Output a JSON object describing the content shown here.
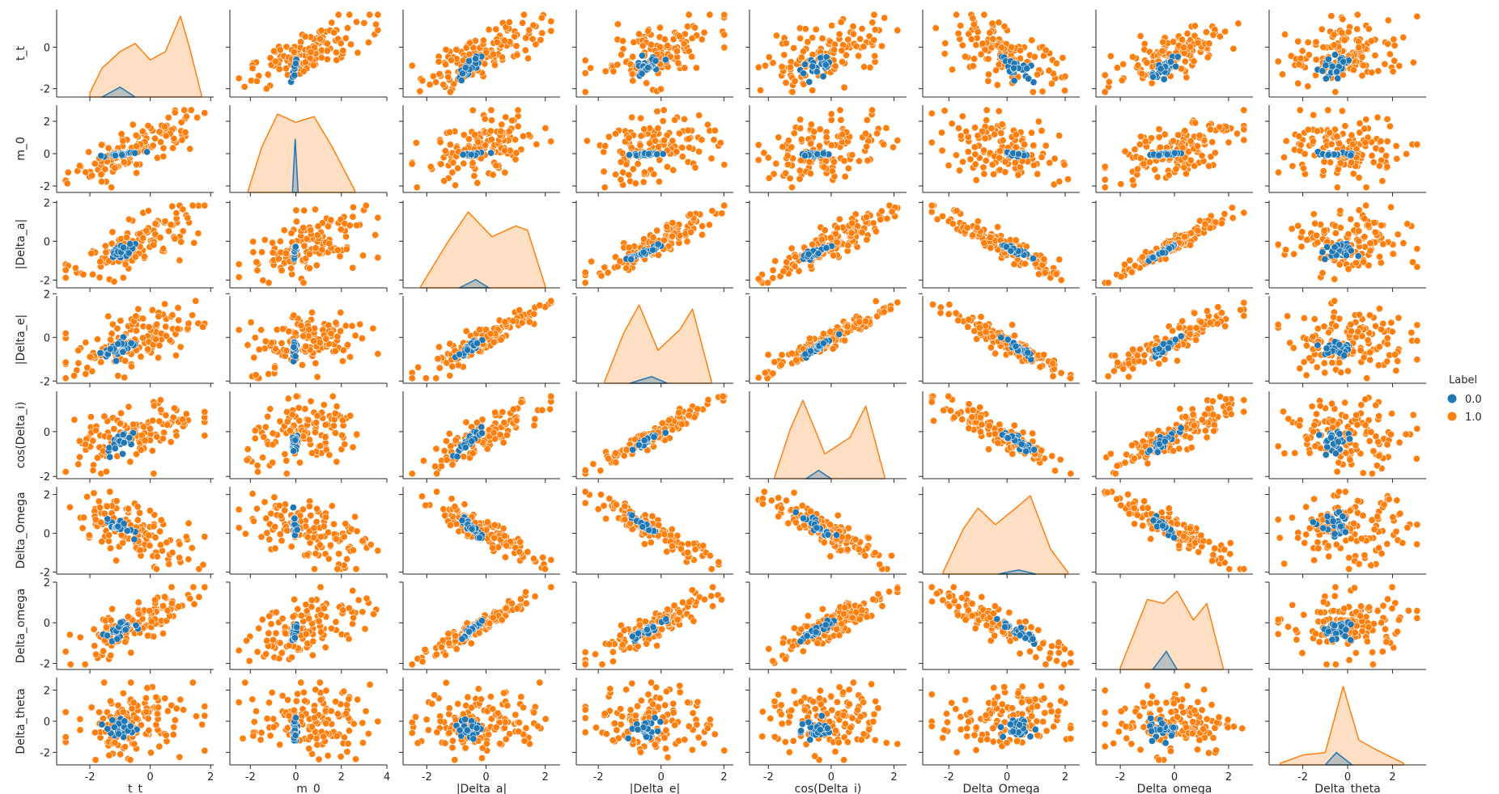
{
  "chart_data": {
    "type": "scatter",
    "kind": "pairplot",
    "variables": [
      "t_t",
      "m_0",
      "|Delta_a|",
      "|Delta_e|",
      "cos(Delta_i)",
      "Delta_Omega",
      "Delta_omega",
      "Delta_theta"
    ],
    "legend": {
      "title": "Label",
      "position": "right",
      "entries": [
        {
          "label": "0.0",
          "color": "#1f77b4"
        },
        {
          "label": "1.0",
          "color": "#ff7f0e"
        }
      ]
    },
    "diagonal": "kde",
    "off_diagonal": "scatter",
    "grid": false,
    "axes": [
      {
        "name": "t_t",
        "range": [
          -3.1,
          2.1
        ],
        "ticks": [
          "-2",
          "0",
          "2"
        ],
        "y_range": [
          -2.4,
          1.8
        ],
        "y_ticks": [
          "-2",
          "0"
        ],
        "cluster_center": -1.0,
        "cluster_spread": 0.25,
        "kde": [
          [
            -2.0,
            0.05
          ],
          [
            -1.6,
            0.35
          ],
          [
            -1.0,
            0.55
          ],
          [
            -0.5,
            0.65
          ],
          [
            0.0,
            0.45
          ],
          [
            0.5,
            0.55
          ],
          [
            1.0,
            0.98
          ],
          [
            1.3,
            0.6
          ],
          [
            1.7,
            0.02
          ]
        ],
        "kde_label0": [
          [
            -1.6,
            0.0
          ],
          [
            -1.0,
            0.12
          ],
          [
            -0.5,
            0.0
          ]
        ]
      },
      {
        "name": "m_0",
        "range": [
          -2.9,
          4.0
        ],
        "ticks": [
          "-2",
          "0",
          "2",
          "4"
        ],
        "y_range": [
          -2.4,
          3.0
        ],
        "y_ticks": [
          "-2",
          "0",
          "2"
        ],
        "cluster_center": -0.05,
        "cluster_spread": 0.05,
        "kde": [
          [
            -2.1,
            0.02
          ],
          [
            -1.5,
            0.55
          ],
          [
            -0.8,
            0.95
          ],
          [
            0.0,
            0.85
          ],
          [
            0.8,
            0.92
          ],
          [
            1.6,
            0.55
          ],
          [
            2.6,
            0.02
          ]
        ],
        "kde_label0": [
          [
            -0.15,
            0.0
          ],
          [
            -0.03,
            0.65
          ],
          [
            0.1,
            0.0
          ]
        ]
      },
      {
        "name": "|Delta_a|",
        "range": [
          -2.8,
          2.5
        ],
        "ticks": [
          "-2",
          "0",
          "2"
        ],
        "y_range": [
          -2.4,
          2.1
        ],
        "y_ticks": [
          "-2",
          "0",
          "2"
        ],
        "cluster_center": -0.55,
        "cluster_spread": 0.2,
        "kde": [
          [
            -2.2,
            0.02
          ],
          [
            -1.3,
            0.55
          ],
          [
            -0.6,
            0.92
          ],
          [
            0.2,
            0.62
          ],
          [
            1.0,
            0.75
          ],
          [
            1.4,
            0.7
          ],
          [
            2.0,
            0.02
          ]
        ],
        "kde_label0": [
          [
            -0.9,
            0.0
          ],
          [
            -0.35,
            0.1
          ],
          [
            0.1,
            0.0
          ]
        ]
      },
      {
        "name": "|Delta_e|",
        "range": [
          -2.7,
          2.3
        ],
        "ticks": [
          "-2",
          "0",
          "2"
        ],
        "y_range": [
          -2.1,
          1.9
        ],
        "y_ticks": [
          "-2",
          "0",
          "2"
        ],
        "cluster_center": -0.5,
        "cluster_spread": 0.25,
        "kde": [
          [
            -1.8,
            0.02
          ],
          [
            -1.2,
            0.6
          ],
          [
            -0.7,
            0.95
          ],
          [
            -0.1,
            0.4
          ],
          [
            0.6,
            0.65
          ],
          [
            1.0,
            0.9
          ],
          [
            1.6,
            0.03
          ]
        ],
        "kde_label0": [
          [
            -1.0,
            0.0
          ],
          [
            -0.3,
            0.08
          ],
          [
            0.2,
            0.0
          ]
        ]
      },
      {
        "name": "cos(Delta_i)",
        "range": [
          -2.6,
          2.4
        ],
        "ticks": [
          "-2",
          "0",
          "2"
        ],
        "y_range": [
          -2.1,
          1.8
        ],
        "y_ticks": [
          "-2",
          "0"
        ],
        "cluster_center": -0.45,
        "cluster_spread": 0.25,
        "kde": [
          [
            -1.8,
            0.02
          ],
          [
            -1.3,
            0.6
          ],
          [
            -0.9,
            0.95
          ],
          [
            -0.2,
            0.3
          ],
          [
            0.6,
            0.5
          ],
          [
            1.1,
            0.88
          ],
          [
            1.7,
            0.03
          ]
        ],
        "kde_label0": [
          [
            -0.8,
            0.0
          ],
          [
            -0.4,
            0.1
          ],
          [
            0.0,
            0.0
          ]
        ]
      },
      {
        "name": "Delta_Omega",
        "range": [
          -2.9,
          2.5
        ],
        "ticks": [
          "-2",
          "0",
          "2"
        ],
        "y_range": [
          -2.1,
          2.4
        ],
        "y_ticks": [
          "-2",
          "0",
          "2"
        ],
        "cluster_center": 0.35,
        "cluster_spread": 0.3,
        "kde": [
          [
            -2.2,
            0.02
          ],
          [
            -1.5,
            0.55
          ],
          [
            -1.0,
            0.8
          ],
          [
            -0.4,
            0.6
          ],
          [
            0.3,
            0.8
          ],
          [
            0.8,
            0.95
          ],
          [
            1.5,
            0.3
          ],
          [
            2.1,
            0.02
          ]
        ],
        "kde_label0": [
          [
            -0.3,
            0.0
          ],
          [
            0.4,
            0.05
          ],
          [
            1.0,
            0.0
          ]
        ]
      },
      {
        "name": "Delta_omega",
        "range": [
          -2.9,
          2.9
        ],
        "ticks": [
          "-2",
          "0",
          "2"
        ],
        "y_range": [
          -2.3,
          2.0
        ],
        "y_ticks": [
          "-2",
          "0",
          "2"
        ],
        "cluster_center": -0.4,
        "cluster_spread": 0.25,
        "kde": [
          [
            -2.0,
            0.02
          ],
          [
            -1.0,
            0.85
          ],
          [
            -0.4,
            0.8
          ],
          [
            0.1,
            0.95
          ],
          [
            0.7,
            0.6
          ],
          [
            1.2,
            0.8
          ],
          [
            1.8,
            0.02
          ]
        ],
        "kde_label0": [
          [
            -0.8,
            0.0
          ],
          [
            -0.3,
            0.22
          ],
          [
            0.1,
            0.0
          ]
        ]
      },
      {
        "name": "Delta_theta",
        "range": [
          -3.5,
          3.5
        ],
        "ticks": [
          "-2",
          "0",
          "2"
        ],
        "y_range": [
          -2.8,
          2.8
        ],
        "y_ticks": [
          "-2",
          "0",
          "2"
        ],
        "cluster_center": -0.5,
        "cluster_spread": 0.35,
        "kde": [
          [
            -3.0,
            0.02
          ],
          [
            -2.0,
            0.12
          ],
          [
            -1.0,
            0.15
          ],
          [
            -0.2,
            0.95
          ],
          [
            0.5,
            0.3
          ],
          [
            1.3,
            0.18
          ],
          [
            2.5,
            0.02
          ]
        ],
        "kde_label0": [
          [
            -1.0,
            0.0
          ],
          [
            -0.5,
            0.15
          ],
          [
            0.2,
            0.0
          ]
        ]
      }
    ]
  }
}
